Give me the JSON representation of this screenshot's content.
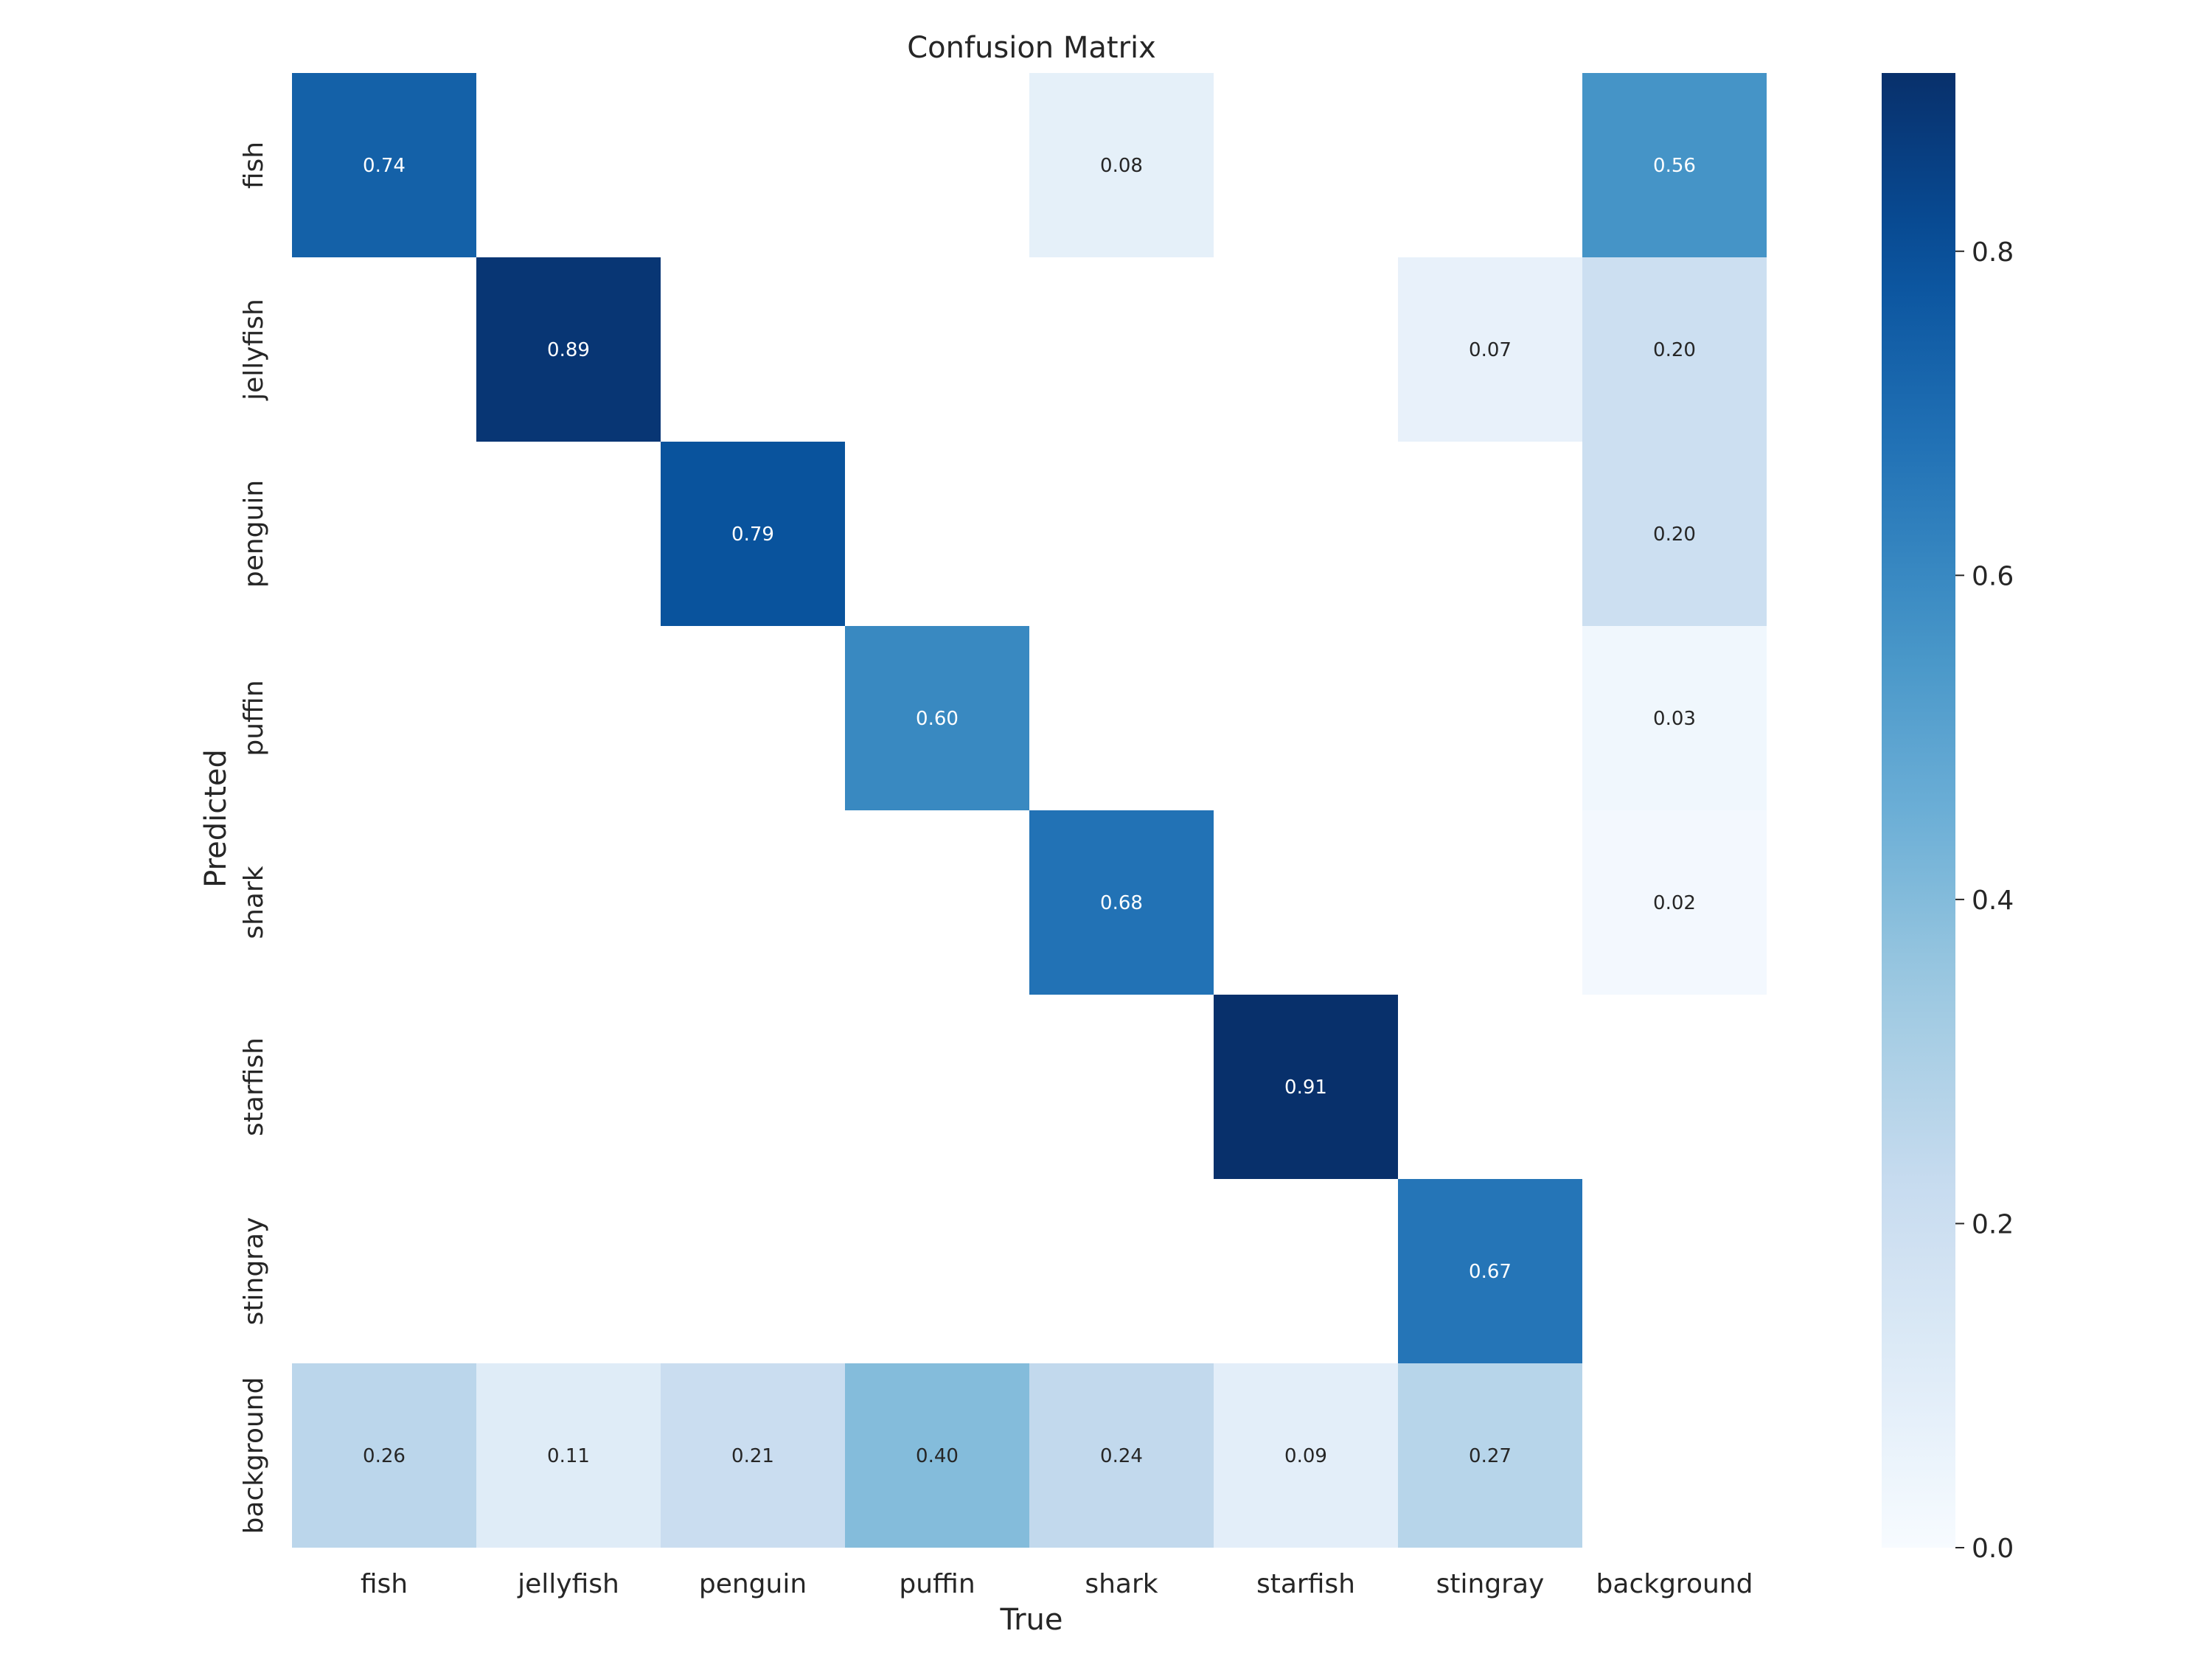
{
  "chart_data": {
    "type": "heatmap",
    "title": "Confusion Matrix",
    "xlabel": "True",
    "ylabel": "Predicted",
    "x_categories": [
      "fish",
      "jellyfish",
      "penguin",
      "puffin",
      "shark",
      "starfish",
      "stingray",
      "background"
    ],
    "y_categories": [
      "fish",
      "jellyfish",
      "penguin",
      "puffin",
      "shark",
      "starfish",
      "stingray",
      "background"
    ],
    "values": [
      [
        0.74,
        null,
        null,
        null,
        0.08,
        null,
        null,
        0.56
      ],
      [
        null,
        0.89,
        null,
        null,
        null,
        null,
        0.07,
        0.2
      ],
      [
        null,
        null,
        0.79,
        null,
        null,
        null,
        null,
        0.2
      ],
      [
        null,
        null,
        null,
        0.6,
        null,
        null,
        null,
        0.03
      ],
      [
        null,
        null,
        null,
        null,
        0.68,
        null,
        null,
        0.02
      ],
      [
        null,
        null,
        null,
        null,
        null,
        0.91,
        null,
        null
      ],
      [
        null,
        null,
        null,
        null,
        null,
        null,
        0.67,
        null
      ],
      [
        0.26,
        0.11,
        0.21,
        0.4,
        0.24,
        0.09,
        0.27,
        null
      ]
    ],
    "value_labels": [
      [
        "0.74",
        "",
        "",
        "",
        "0.08",
        "",
        "",
        "0.56"
      ],
      [
        "",
        "0.89",
        "",
        "",
        "",
        "",
        "0.07",
        "0.20"
      ],
      [
        "",
        "",
        "0.79",
        "",
        "",
        "",
        "",
        "0.20"
      ],
      [
        "",
        "",
        "",
        "0.60",
        "",
        "",
        "",
        "0.03"
      ],
      [
        "",
        "",
        "",
        "",
        "0.68",
        "",
        "",
        "0.02"
      ],
      [
        "",
        "",
        "",
        "",
        "",
        "0.91",
        "",
        ""
      ],
      [
        "",
        "",
        "",
        "",
        "",
        "",
        "0.67",
        ""
      ],
      [
        "0.26",
        "0.11",
        "0.21",
        "0.40",
        "0.24",
        "0.09",
        "0.27",
        ""
      ]
    ],
    "colormap": "Blues",
    "vmin": 0.0,
    "vmax": 0.91,
    "colorbar_ticks": [
      "0.0",
      "0.2",
      "0.4",
      "0.6",
      "0.8"
    ],
    "grid": false,
    "colorbar_position": "right"
  }
}
